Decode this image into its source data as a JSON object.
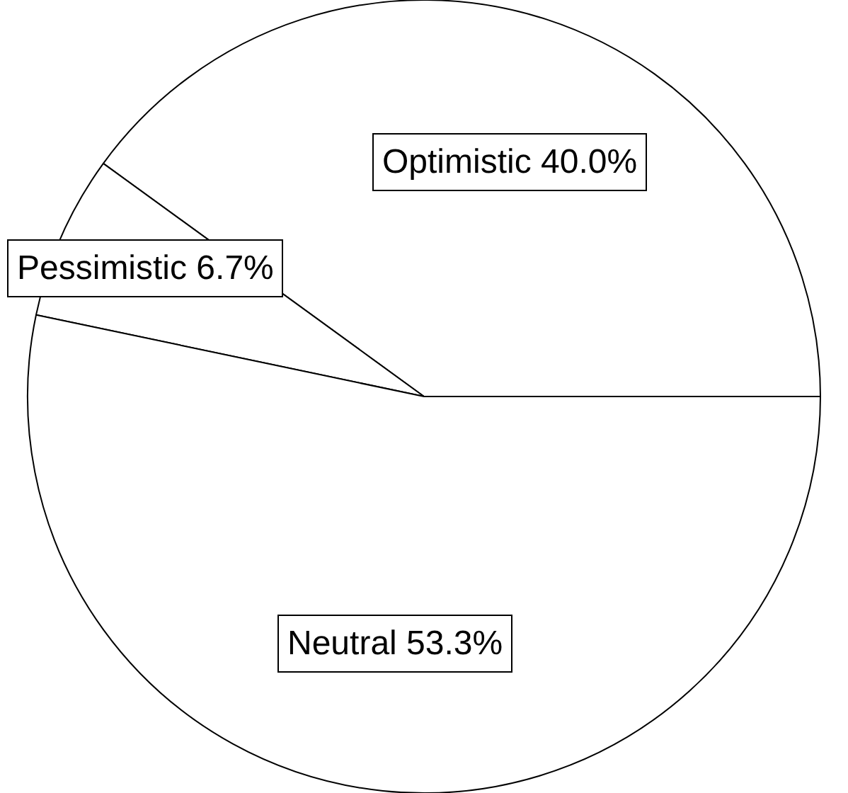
{
  "chart_data": {
    "type": "pie",
    "categories": [
      "Optimistic",
      "Pessimistic",
      "Neutral"
    ],
    "values": [
      40.0,
      6.7,
      53.3
    ],
    "colors": [
      "#ffffff",
      "#ffffff",
      "#ffffff"
    ],
    "value_labels": [
      "40.0%",
      "6.7%",
      "53.3%"
    ],
    "legend": false
  }
}
